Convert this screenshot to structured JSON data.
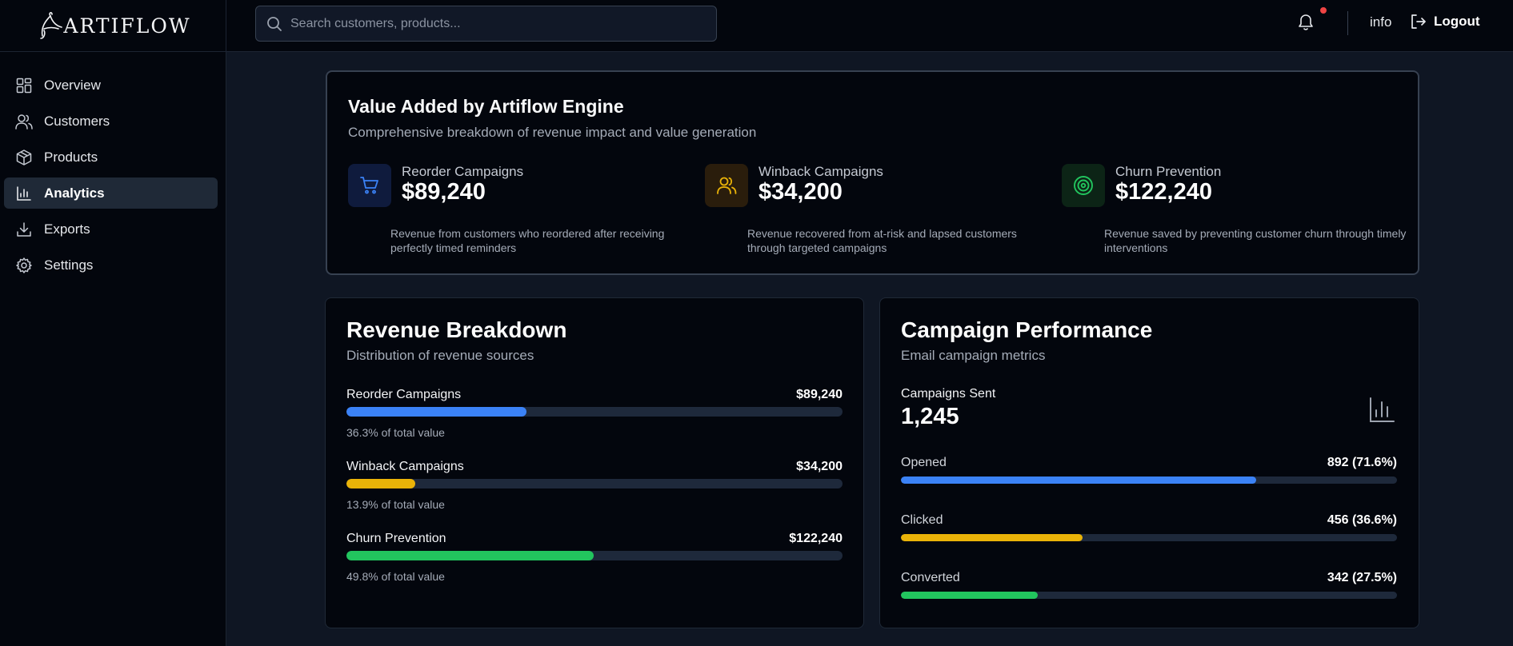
{
  "brand": {
    "logo_text": "ARTIFLOW"
  },
  "sidebar": {
    "items": [
      {
        "label": "Overview",
        "icon": "layout-grid-icon"
      },
      {
        "label": "Customers",
        "icon": "users-icon"
      },
      {
        "label": "Products",
        "icon": "package-icon"
      },
      {
        "label": "Analytics",
        "icon": "bar-chart-icon",
        "active": true
      },
      {
        "label": "Exports",
        "icon": "download-icon"
      },
      {
        "label": "Settings",
        "icon": "gear-icon"
      }
    ]
  },
  "topbar": {
    "search_placeholder": "Search customers, products...",
    "search_value": "",
    "info_label": "info",
    "logout_label": "Logout",
    "has_notification": true
  },
  "value_card": {
    "title": "Value Added by Artiflow Engine",
    "subtitle": "Comprehensive breakdown of revenue impact and value generation",
    "metrics": [
      {
        "label": "Reorder Campaigns",
        "value": "$89,240",
        "description": "Revenue from customers who reordered after receiving perfectly timed reminders",
        "icon": "shopping-cart-icon",
        "color": "#3b82f6"
      },
      {
        "label": "Winback Campaigns",
        "value": "$34,200",
        "description": "Revenue recovered from at-risk and lapsed customers through targeted campaigns",
        "icon": "users-icon",
        "color": "#eab308"
      },
      {
        "label": "Churn Prevention",
        "value": "$122,240",
        "description": "Revenue saved by preventing customer churn through timely interventions",
        "icon": "target-icon",
        "color": "#22c55e"
      }
    ]
  },
  "revenue_breakdown": {
    "title": "Revenue Breakdown",
    "subtitle": "Distribution of revenue sources",
    "rows": [
      {
        "label": "Reorder Campaigns",
        "value": "$89,240",
        "percent_text": "36.3% of total value",
        "percent": 36.3,
        "color": "#3b82f6"
      },
      {
        "label": "Winback Campaigns",
        "value": "$34,200",
        "percent_text": "13.9% of total value",
        "percent": 13.9,
        "color": "#eab308"
      },
      {
        "label": "Churn Prevention",
        "value": "$122,240",
        "percent_text": "49.8% of total value",
        "percent": 49.8,
        "color": "#22c55e"
      }
    ]
  },
  "campaign_performance": {
    "title": "Campaign Performance",
    "subtitle": "Email campaign metrics",
    "sent_label": "Campaigns Sent",
    "sent_value": "1,245",
    "rows": [
      {
        "label": "Opened",
        "value": "892 (71.6%)",
        "percent": 71.6,
        "color": "#3b82f6"
      },
      {
        "label": "Clicked",
        "value": "456 (36.6%)",
        "percent": 36.6,
        "color": "#eab308"
      },
      {
        "label": "Converted",
        "value": "342 (27.5%)",
        "percent": 27.5,
        "color": "#22c55e"
      }
    ]
  }
}
